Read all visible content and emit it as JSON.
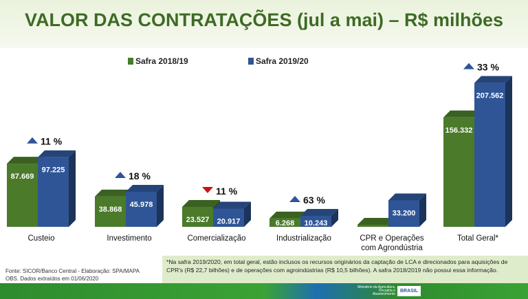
{
  "title": "VALOR DAS CONTRATAÇÕES (jul a mai) – R$ milhões",
  "chart_data": {
    "type": "bar",
    "title": "VALOR DAS CONTRATAÇÕES (jul a mai) – R$ milhões",
    "categories": [
      "Custeio",
      "Investimento",
      "Comercialização",
      "Industrialização",
      "CPR e Operações com Agrondústria",
      "Total Geral*"
    ],
    "series": [
      {
        "name": "Safra 2018/19",
        "color": "#4a7a2a",
        "values": [
          87.669,
          38.868,
          23.527,
          6.268,
          0,
          156.332
        ],
        "labels": [
          "87.669",
          "38.868",
          "23.527",
          "6.268",
          "",
          "156.332"
        ]
      },
      {
        "name": "Safra 2019/20",
        "color": "#2f5597",
        "values": [
          97.225,
          45.978,
          20.917,
          10.243,
          33.2,
          207.562
        ],
        "labels": [
          "97.225",
          "45.978",
          "20.917",
          "10.243",
          "33.200",
          "207.562"
        ]
      }
    ],
    "changes": [
      {
        "text": "11 %",
        "direction": "up"
      },
      {
        "text": "18 %",
        "direction": "up"
      },
      {
        "text": "11 %",
        "direction": "down"
      },
      {
        "text": "63 %",
        "direction": "up"
      },
      null,
      {
        "text": "33 %",
        "direction": "up"
      }
    ],
    "legend": "top"
  },
  "source": "Fonte: SICOR/Banco Central - Elaboração: SPA/MAPA",
  "obs": "OBS. Dados extraídos em 01/06/2020",
  "note": "*Na safra 2019/2020, em total geral, estão inclusos os recursos originários da captação de LCA e direcionados para aquisições de CPR's (R$ 22,7 bilhões) e de operações com agroindústrias (R$ 10,5 bilhões). A safra 2018/2019 não possui essa informação.",
  "logo": {
    "ministry": "Ministério da Agricultura, Pecuária e Abastecimento",
    "brand": "BRASIL"
  }
}
